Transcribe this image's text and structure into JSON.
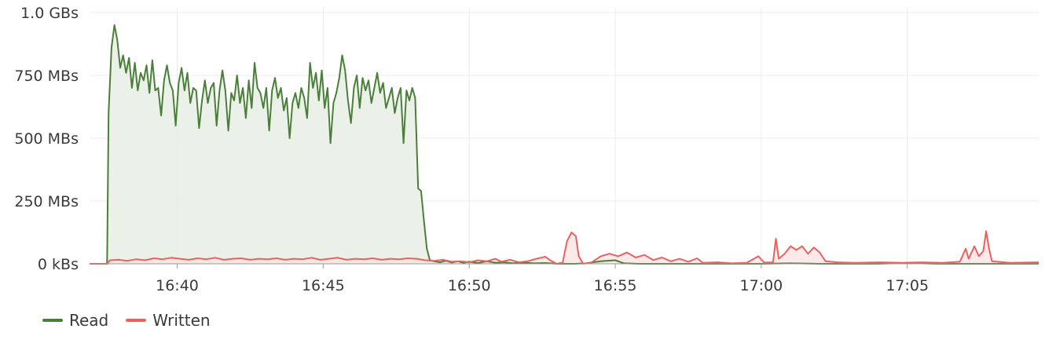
{
  "chart_data": {
    "type": "area",
    "title": "",
    "xlabel": "",
    "ylabel": "",
    "x_ticks": [
      "16:40",
      "16:45",
      "16:50",
      "16:55",
      "17:00",
      "17:05"
    ],
    "x_tick_minutes": [
      40,
      45,
      50,
      55,
      60,
      65
    ],
    "x_range_minutes": [
      37.0,
      69.5
    ],
    "y_ticks": [
      "0 kBs",
      "250 MBs",
      "500 MBs",
      "750 MBs",
      "1.0 GBs"
    ],
    "y_tick_values": [
      0,
      250,
      500,
      750,
      1000
    ],
    "y_unit": "MB/s",
    "ylim": [
      0,
      1000
    ],
    "grid": true,
    "legend_position": "bottom-left",
    "series": [
      {
        "name": "Read",
        "color": "#4a7f3a",
        "fill": "#e9f0e5",
        "points": [
          [
            37.0,
            0
          ],
          [
            37.6,
            0
          ],
          [
            37.65,
            600
          ],
          [
            37.75,
            860
          ],
          [
            37.85,
            950
          ],
          [
            37.95,
            890
          ],
          [
            38.05,
            780
          ],
          [
            38.15,
            830
          ],
          [
            38.25,
            760
          ],
          [
            38.35,
            820
          ],
          [
            38.45,
            700
          ],
          [
            38.55,
            800
          ],
          [
            38.65,
            690
          ],
          [
            38.75,
            760
          ],
          [
            38.85,
            730
          ],
          [
            38.95,
            790
          ],
          [
            39.05,
            680
          ],
          [
            39.15,
            810
          ],
          [
            39.25,
            690
          ],
          [
            39.35,
            700
          ],
          [
            39.45,
            590
          ],
          [
            39.55,
            730
          ],
          [
            39.65,
            790
          ],
          [
            39.75,
            720
          ],
          [
            39.85,
            690
          ],
          [
            39.95,
            550
          ],
          [
            40.05,
            720
          ],
          [
            40.15,
            780
          ],
          [
            40.25,
            690
          ],
          [
            40.35,
            760
          ],
          [
            40.45,
            640
          ],
          [
            40.55,
            700
          ],
          [
            40.65,
            690
          ],
          [
            40.75,
            540
          ],
          [
            40.85,
            650
          ],
          [
            40.95,
            730
          ],
          [
            41.05,
            640
          ],
          [
            41.15,
            700
          ],
          [
            41.25,
            720
          ],
          [
            41.35,
            550
          ],
          [
            41.45,
            690
          ],
          [
            41.55,
            770
          ],
          [
            41.65,
            690
          ],
          [
            41.75,
            530
          ],
          [
            41.85,
            680
          ],
          [
            41.95,
            650
          ],
          [
            42.05,
            750
          ],
          [
            42.15,
            640
          ],
          [
            42.25,
            700
          ],
          [
            42.35,
            580
          ],
          [
            42.45,
            730
          ],
          [
            42.55,
            620
          ],
          [
            42.65,
            800
          ],
          [
            42.75,
            700
          ],
          [
            42.85,
            680
          ],
          [
            42.95,
            620
          ],
          [
            43.05,
            700
          ],
          [
            43.15,
            530
          ],
          [
            43.25,
            690
          ],
          [
            43.35,
            740
          ],
          [
            43.45,
            660
          ],
          [
            43.55,
            700
          ],
          [
            43.65,
            610
          ],
          [
            43.75,
            660
          ],
          [
            43.85,
            500
          ],
          [
            43.95,
            640
          ],
          [
            44.05,
            680
          ],
          [
            44.15,
            620
          ],
          [
            44.25,
            700
          ],
          [
            44.35,
            660
          ],
          [
            44.45,
            580
          ],
          [
            44.55,
            800
          ],
          [
            44.65,
            700
          ],
          [
            44.75,
            760
          ],
          [
            44.85,
            650
          ],
          [
            44.95,
            770
          ],
          [
            45.05,
            620
          ],
          [
            45.15,
            700
          ],
          [
            45.25,
            480
          ],
          [
            45.35,
            640
          ],
          [
            45.45,
            680
          ],
          [
            45.55,
            740
          ],
          [
            45.65,
            830
          ],
          [
            45.75,
            770
          ],
          [
            45.85,
            650
          ],
          [
            45.95,
            560
          ],
          [
            46.05,
            700
          ],
          [
            46.15,
            750
          ],
          [
            46.25,
            620
          ],
          [
            46.35,
            740
          ],
          [
            46.45,
            690
          ],
          [
            46.55,
            730
          ],
          [
            46.65,
            640
          ],
          [
            46.75,
            700
          ],
          [
            46.85,
            760
          ],
          [
            46.95,
            680
          ],
          [
            47.05,
            720
          ],
          [
            47.15,
            620
          ],
          [
            47.25,
            660
          ],
          [
            47.35,
            700
          ],
          [
            47.45,
            600
          ],
          [
            47.55,
            660
          ],
          [
            47.65,
            700
          ],
          [
            47.75,
            480
          ],
          [
            47.85,
            690
          ],
          [
            47.95,
            650
          ],
          [
            48.05,
            700
          ],
          [
            48.15,
            660
          ],
          [
            48.25,
            300
          ],
          [
            48.35,
            290
          ],
          [
            48.45,
            170
          ],
          [
            48.55,
            60
          ],
          [
            48.65,
            15
          ],
          [
            48.8,
            10
          ],
          [
            49.0,
            6
          ],
          [
            49.2,
            12
          ],
          [
            49.4,
            5
          ],
          [
            49.6,
            10
          ],
          [
            49.8,
            4
          ],
          [
            50.0,
            8
          ],
          [
            50.3,
            3
          ],
          [
            50.6,
            10
          ],
          [
            50.9,
            4
          ],
          [
            51.2,
            6
          ],
          [
            51.5,
            2
          ],
          [
            51.8,
            5
          ],
          [
            52.2,
            2
          ],
          [
            52.6,
            3
          ],
          [
            53.0,
            0
          ],
          [
            53.6,
            0
          ],
          [
            54.0,
            2
          ],
          [
            54.5,
            10
          ],
          [
            55.0,
            14
          ],
          [
            55.3,
            2
          ],
          [
            55.8,
            0
          ],
          [
            58.0,
            0
          ],
          [
            59.0,
            0
          ],
          [
            60.0,
            0
          ],
          [
            61.0,
            2
          ],
          [
            62.0,
            0
          ],
          [
            64.0,
            0
          ],
          [
            65.0,
            3
          ],
          [
            66.0,
            0
          ],
          [
            68.0,
            0
          ],
          [
            69.5,
            0
          ]
        ]
      },
      {
        "name": "Written",
        "color": "#e8635f",
        "fill": "#fae3e2",
        "points": [
          [
            37.0,
            0
          ],
          [
            37.6,
            0
          ],
          [
            37.7,
            14
          ],
          [
            38.0,
            16
          ],
          [
            38.3,
            12
          ],
          [
            38.6,
            18
          ],
          [
            38.9,
            14
          ],
          [
            39.2,
            22
          ],
          [
            39.5,
            18
          ],
          [
            39.8,
            24
          ],
          [
            40.1,
            20
          ],
          [
            40.4,
            16
          ],
          [
            40.7,
            22
          ],
          [
            41.0,
            18
          ],
          [
            41.3,
            24
          ],
          [
            41.6,
            16
          ],
          [
            41.9,
            20
          ],
          [
            42.2,
            22
          ],
          [
            42.5,
            16
          ],
          [
            42.8,
            20
          ],
          [
            43.1,
            18
          ],
          [
            43.4,
            22
          ],
          [
            43.7,
            16
          ],
          [
            44.0,
            20
          ],
          [
            44.3,
            18
          ],
          [
            44.6,
            24
          ],
          [
            44.9,
            16
          ],
          [
            45.2,
            20
          ],
          [
            45.5,
            24
          ],
          [
            45.8,
            16
          ],
          [
            46.1,
            20
          ],
          [
            46.4,
            18
          ],
          [
            46.7,
            22
          ],
          [
            47.0,
            16
          ],
          [
            47.3,
            20
          ],
          [
            47.6,
            18
          ],
          [
            47.9,
            22
          ],
          [
            48.2,
            20
          ],
          [
            48.5,
            14
          ],
          [
            48.8,
            12
          ],
          [
            49.1,
            16
          ],
          [
            49.4,
            8
          ],
          [
            49.7,
            10
          ],
          [
            50.0,
            6
          ],
          [
            50.3,
            14
          ],
          [
            50.6,
            10
          ],
          [
            50.9,
            20
          ],
          [
            51.1,
            8
          ],
          [
            51.4,
            16
          ],
          [
            51.7,
            6
          ],
          [
            52.0,
            10
          ],
          [
            52.3,
            20
          ],
          [
            52.6,
            28
          ],
          [
            52.8,
            12
          ],
          [
            53.0,
            0
          ],
          [
            53.2,
            5
          ],
          [
            53.35,
            90
          ],
          [
            53.5,
            125
          ],
          [
            53.65,
            110
          ],
          [
            53.75,
            30
          ],
          [
            53.9,
            0
          ],
          [
            54.2,
            6
          ],
          [
            54.5,
            30
          ],
          [
            54.8,
            40
          ],
          [
            55.1,
            30
          ],
          [
            55.4,
            45
          ],
          [
            55.7,
            25
          ],
          [
            56.0,
            35
          ],
          [
            56.3,
            15
          ],
          [
            56.6,
            25
          ],
          [
            56.9,
            10
          ],
          [
            57.2,
            20
          ],
          [
            57.5,
            8
          ],
          [
            57.8,
            22
          ],
          [
            58.0,
            4
          ],
          [
            58.5,
            6
          ],
          [
            59.0,
            2
          ],
          [
            59.5,
            4
          ],
          [
            59.9,
            30
          ],
          [
            60.1,
            5
          ],
          [
            60.4,
            6
          ],
          [
            60.5,
            100
          ],
          [
            60.6,
            20
          ],
          [
            60.8,
            40
          ],
          [
            61.0,
            70
          ],
          [
            61.2,
            55
          ],
          [
            61.4,
            70
          ],
          [
            61.6,
            40
          ],
          [
            61.8,
            65
          ],
          [
            62.0,
            45
          ],
          [
            62.2,
            10
          ],
          [
            62.6,
            6
          ],
          [
            63.2,
            4
          ],
          [
            64.0,
            6
          ],
          [
            64.8,
            4
          ],
          [
            65.5,
            6
          ],
          [
            66.2,
            4
          ],
          [
            66.8,
            8
          ],
          [
            67.0,
            60
          ],
          [
            67.1,
            20
          ],
          [
            67.3,
            70
          ],
          [
            67.45,
            30
          ],
          [
            67.6,
            50
          ],
          [
            67.7,
            130
          ],
          [
            67.8,
            60
          ],
          [
            67.9,
            10
          ],
          [
            68.5,
            4
          ],
          [
            69.5,
            6
          ]
        ]
      }
    ]
  },
  "legend": {
    "items": [
      {
        "label": "Read",
        "color": "#4a7f3a"
      },
      {
        "label": "Written",
        "color": "#e8635f"
      }
    ]
  }
}
